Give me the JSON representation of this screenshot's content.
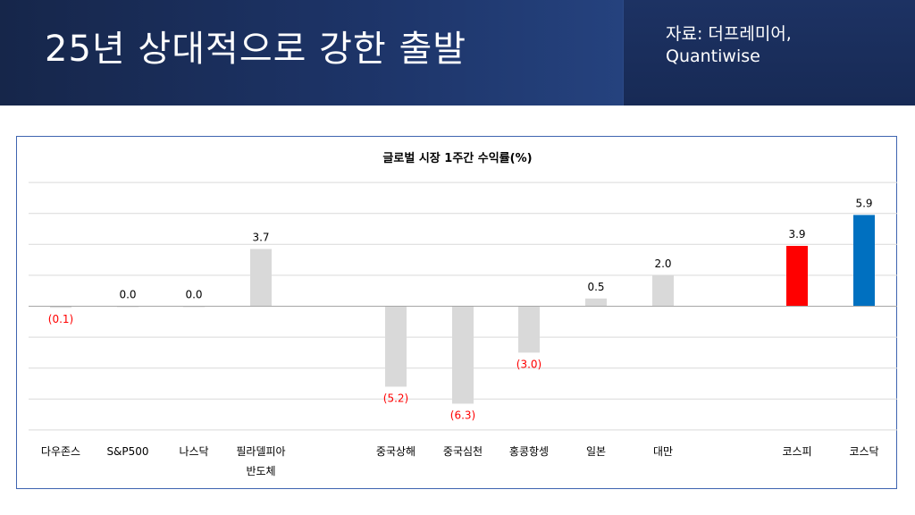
{
  "header": {
    "title": "25년 상대적으로 강한 출발",
    "source_line1": "자료: 더프레미어,",
    "source_line2": "Quantiwise"
  },
  "colors": {
    "default_bar": "#d9d9d9",
    "kospi_bar": "#ff0000",
    "kosdaq_bar": "#0070c0",
    "negative_label": "#ff0000",
    "positive_label": "#000000"
  },
  "chart_data": {
    "type": "bar",
    "title": "글로벌 시장 1주간 수익률(%)",
    "xlabel": "",
    "ylabel": "",
    "ylim": [
      -8,
      8
    ],
    "grid": true,
    "categories": [
      {
        "lines": [
          "다우존스"
        ],
        "value": -0.1,
        "label": "(0.1)",
        "color": "#d9d9d9"
      },
      {
        "lines": [
          "S&P500"
        ],
        "value": 0.0,
        "label": "0.0",
        "color": "#d9d9d9"
      },
      {
        "lines": [
          "나스닥"
        ],
        "value": 0.0,
        "label": "0.0",
        "color": "#d9d9d9"
      },
      {
        "lines": [
          "필라델피아",
          "반도체"
        ],
        "value": 3.7,
        "label": "3.7",
        "color": "#d9d9d9"
      },
      {
        "lines": [
          "중국상해"
        ],
        "value": -5.2,
        "label": "(5.2)",
        "color": "#d9d9d9"
      },
      {
        "lines": [
          "중국심천"
        ],
        "value": -6.3,
        "label": "(6.3)",
        "color": "#d9d9d9"
      },
      {
        "lines": [
          "홍콩항셍"
        ],
        "value": -3.0,
        "label": "(3.0)",
        "color": "#d9d9d9"
      },
      {
        "lines": [
          "일본"
        ],
        "value": 0.5,
        "label": "0.5",
        "color": "#d9d9d9"
      },
      {
        "lines": [
          "대만"
        ],
        "value": 2.0,
        "label": "2.0",
        "color": "#d9d9d9"
      },
      {
        "lines": [
          "코스피"
        ],
        "value": 3.9,
        "label": "3.9",
        "color": "#ff0000"
      },
      {
        "lines": [
          "코스닥"
        ],
        "value": 5.9,
        "label": "5.9",
        "color": "#0070c0"
      }
    ]
  }
}
